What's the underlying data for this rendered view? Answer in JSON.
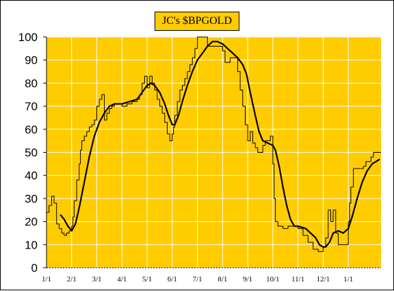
{
  "chart_data": {
    "type": "line",
    "title": "JC's $BPGOLD",
    "xlabel": "",
    "ylabel": "",
    "ylim": [
      0,
      100
    ],
    "yticks": [
      0,
      10,
      20,
      30,
      40,
      50,
      60,
      70,
      80,
      90,
      100
    ],
    "xlim": [
      0,
      13.3
    ],
    "xticks": [
      {
        "label": "1/1",
        "x": 0
      },
      {
        "label": "2/1",
        "x": 1
      },
      {
        "label": "3/1",
        "x": 2
      },
      {
        "label": "4/1",
        "x": 3
      },
      {
        "label": "5/1",
        "x": 4
      },
      {
        "label": "6/1",
        "x": 5
      },
      {
        "label": "7/1",
        "x": 6
      },
      {
        "label": "8/1",
        "x": 7
      },
      {
        "label": "9/1",
        "x": 8
      },
      {
        "label": "10/1",
        "x": 9
      },
      {
        "label": "11/1",
        "x": 10
      },
      {
        "label": "12/1",
        "x": 11
      },
      {
        "label": "1/1",
        "x": 12
      }
    ],
    "grid": true,
    "colors": {
      "plot_background": "#FFCC00",
      "grid": "#FFFFFF",
      "line": "#000000"
    },
    "series": [
      {
        "style": "thin",
        "points": [
          [
            0.0,
            24
          ],
          [
            0.1,
            24
          ],
          [
            0.1,
            27
          ],
          [
            0.2,
            27
          ],
          [
            0.2,
            31
          ],
          [
            0.3,
            31
          ],
          [
            0.3,
            28
          ],
          [
            0.4,
            28
          ],
          [
            0.4,
            19
          ],
          [
            0.5,
            19
          ],
          [
            0.5,
            17
          ],
          [
            0.6,
            17
          ],
          [
            0.6,
            15
          ],
          [
            0.7,
            15
          ],
          [
            0.7,
            14
          ],
          [
            0.8,
            14
          ],
          [
            0.8,
            15
          ],
          [
            0.9,
            15
          ],
          [
            0.9,
            16
          ],
          [
            1.0,
            16
          ],
          [
            1.0,
            18
          ],
          [
            1.05,
            18
          ],
          [
            1.05,
            22
          ],
          [
            1.1,
            22
          ],
          [
            1.1,
            29
          ],
          [
            1.2,
            29
          ],
          [
            1.2,
            38
          ],
          [
            1.3,
            38
          ],
          [
            1.3,
            45
          ],
          [
            1.35,
            45
          ],
          [
            1.35,
            51
          ],
          [
            1.4,
            51
          ],
          [
            1.4,
            55
          ],
          [
            1.5,
            55
          ],
          [
            1.5,
            57
          ],
          [
            1.6,
            57
          ],
          [
            1.6,
            59
          ],
          [
            1.7,
            59
          ],
          [
            1.7,
            61
          ],
          [
            1.8,
            61
          ],
          [
            1.8,
            62
          ],
          [
            1.9,
            62
          ],
          [
            1.9,
            64
          ],
          [
            2.0,
            64
          ],
          [
            2.0,
            70
          ],
          [
            2.1,
            70
          ],
          [
            2.1,
            73
          ],
          [
            2.2,
            73
          ],
          [
            2.2,
            75
          ],
          [
            2.3,
            75
          ],
          [
            2.3,
            64
          ],
          [
            2.4,
            64
          ],
          [
            2.4,
            67
          ],
          [
            2.5,
            67
          ],
          [
            2.5,
            69
          ],
          [
            2.6,
            69
          ],
          [
            2.6,
            70
          ],
          [
            2.7,
            70
          ],
          [
            2.7,
            71
          ],
          [
            3.0,
            71
          ],
          [
            3.0,
            70
          ],
          [
            3.2,
            70
          ],
          [
            3.2,
            71
          ],
          [
            3.4,
            71
          ],
          [
            3.4,
            72
          ],
          [
            3.6,
            72
          ],
          [
            3.6,
            73
          ],
          [
            3.7,
            73
          ],
          [
            3.7,
            75
          ],
          [
            3.8,
            75
          ],
          [
            3.8,
            80
          ],
          [
            3.9,
            80
          ],
          [
            3.9,
            83
          ],
          [
            4.0,
            83
          ],
          [
            4.0,
            78
          ],
          [
            4.1,
            78
          ],
          [
            4.1,
            83
          ],
          [
            4.2,
            83
          ],
          [
            4.2,
            80
          ],
          [
            4.3,
            80
          ],
          [
            4.3,
            77
          ],
          [
            4.4,
            77
          ],
          [
            4.4,
            73
          ],
          [
            4.5,
            73
          ],
          [
            4.5,
            70
          ],
          [
            4.6,
            70
          ],
          [
            4.6,
            67
          ],
          [
            4.7,
            67
          ],
          [
            4.7,
            63
          ],
          [
            4.8,
            63
          ],
          [
            4.8,
            58
          ],
          [
            4.9,
            58
          ],
          [
            4.9,
            55
          ],
          [
            5.0,
            55
          ],
          [
            5.0,
            58
          ],
          [
            5.05,
            58
          ],
          [
            5.05,
            61
          ],
          [
            5.1,
            61
          ],
          [
            5.1,
            66
          ],
          [
            5.2,
            66
          ],
          [
            5.2,
            72
          ],
          [
            5.3,
            72
          ],
          [
            5.3,
            77
          ],
          [
            5.4,
            77
          ],
          [
            5.4,
            79
          ],
          [
            5.5,
            79
          ],
          [
            5.5,
            82
          ],
          [
            5.6,
            82
          ],
          [
            5.6,
            85
          ],
          [
            5.7,
            85
          ],
          [
            5.7,
            88
          ],
          [
            5.8,
            88
          ],
          [
            5.8,
            91
          ],
          [
            5.9,
            91
          ],
          [
            5.9,
            95
          ],
          [
            6.0,
            95
          ],
          [
            6.0,
            100
          ],
          [
            6.4,
            100
          ],
          [
            6.4,
            96
          ],
          [
            7.0,
            96
          ],
          [
            7.0,
            94
          ],
          [
            7.1,
            94
          ],
          [
            7.1,
            89
          ],
          [
            7.3,
            89
          ],
          [
            7.3,
            91
          ],
          [
            7.6,
            91
          ],
          [
            7.6,
            85
          ],
          [
            7.7,
            85
          ],
          [
            7.7,
            77
          ],
          [
            7.8,
            77
          ],
          [
            7.8,
            70
          ],
          [
            7.9,
            70
          ],
          [
            7.9,
            62
          ],
          [
            8.0,
            62
          ],
          [
            8.0,
            55
          ],
          [
            8.1,
            55
          ],
          [
            8.1,
            59
          ],
          [
            8.2,
            59
          ],
          [
            8.2,
            54
          ],
          [
            8.3,
            54
          ],
          [
            8.3,
            52
          ],
          [
            8.4,
            52
          ],
          [
            8.4,
            50
          ],
          [
            8.6,
            50
          ],
          [
            8.6,
            53
          ],
          [
            8.7,
            53
          ],
          [
            8.7,
            55
          ],
          [
            8.9,
            55
          ],
          [
            8.9,
            57
          ],
          [
            9.0,
            57
          ],
          [
            9.0,
            45
          ],
          [
            9.05,
            45
          ],
          [
            9.05,
            30
          ],
          [
            9.1,
            30
          ],
          [
            9.1,
            20
          ],
          [
            9.2,
            20
          ],
          [
            9.2,
            18
          ],
          [
            9.4,
            18
          ],
          [
            9.4,
            17
          ],
          [
            9.6,
            17
          ],
          [
            9.6,
            18
          ],
          [
            10.0,
            18
          ],
          [
            10.0,
            17
          ],
          [
            10.2,
            17
          ],
          [
            10.2,
            14
          ],
          [
            10.4,
            14
          ],
          [
            10.4,
            11
          ],
          [
            10.6,
            11
          ],
          [
            10.6,
            8
          ],
          [
            10.8,
            8
          ],
          [
            10.8,
            7
          ],
          [
            11.0,
            7
          ],
          [
            11.0,
            9
          ],
          [
            11.1,
            9
          ],
          [
            11.1,
            13
          ],
          [
            11.2,
            13
          ],
          [
            11.2,
            25
          ],
          [
            11.3,
            25
          ],
          [
            11.3,
            20
          ],
          [
            11.4,
            20
          ],
          [
            11.4,
            25
          ],
          [
            11.5,
            25
          ],
          [
            11.5,
            15
          ],
          [
            11.6,
            15
          ],
          [
            11.6,
            10
          ],
          [
            12.0,
            10
          ],
          [
            12.0,
            20
          ],
          [
            12.05,
            20
          ],
          [
            12.05,
            28
          ],
          [
            12.1,
            28
          ],
          [
            12.1,
            35
          ],
          [
            12.2,
            35
          ],
          [
            12.2,
            43
          ],
          [
            12.6,
            43
          ],
          [
            12.6,
            44
          ],
          [
            12.7,
            44
          ],
          [
            12.7,
            46
          ],
          [
            12.9,
            46
          ],
          [
            12.9,
            48
          ],
          [
            13.0,
            48
          ],
          [
            13.0,
            50
          ],
          [
            13.3,
            50
          ]
        ]
      },
      {
        "style": "thick",
        "points": [
          [
            0.55,
            23
          ],
          [
            0.7,
            21
          ],
          [
            0.85,
            18
          ],
          [
            1.0,
            16
          ],
          [
            1.15,
            19
          ],
          [
            1.3,
            26
          ],
          [
            1.5,
            37
          ],
          [
            1.7,
            48
          ],
          [
            1.9,
            57
          ],
          [
            2.1,
            63
          ],
          [
            2.3,
            67
          ],
          [
            2.5,
            70
          ],
          [
            2.7,
            71
          ],
          [
            3.0,
            71
          ],
          [
            3.3,
            72
          ],
          [
            3.6,
            73
          ],
          [
            3.8,
            76
          ],
          [
            4.0,
            79
          ],
          [
            4.15,
            80
          ],
          [
            4.3,
            79
          ],
          [
            4.5,
            76
          ],
          [
            4.7,
            71
          ],
          [
            4.85,
            66
          ],
          [
            5.0,
            62
          ],
          [
            5.1,
            62
          ],
          [
            5.25,
            66
          ],
          [
            5.4,
            72
          ],
          [
            5.6,
            79
          ],
          [
            5.8,
            85
          ],
          [
            6.0,
            90
          ],
          [
            6.2,
            93
          ],
          [
            6.4,
            96
          ],
          [
            6.6,
            98
          ],
          [
            6.8,
            98
          ],
          [
            7.0,
            97
          ],
          [
            7.2,
            95
          ],
          [
            7.4,
            93
          ],
          [
            7.6,
            91
          ],
          [
            7.8,
            88
          ],
          [
            7.95,
            84
          ],
          [
            8.1,
            76
          ],
          [
            8.3,
            66
          ],
          [
            8.45,
            59
          ],
          [
            8.6,
            55
          ],
          [
            8.8,
            54
          ],
          [
            9.0,
            53
          ],
          [
            9.1,
            51
          ],
          [
            9.25,
            44
          ],
          [
            9.4,
            35
          ],
          [
            9.55,
            27
          ],
          [
            9.7,
            21
          ],
          [
            9.85,
            18
          ],
          [
            10.0,
            18
          ],
          [
            10.3,
            17
          ],
          [
            10.5,
            15
          ],
          [
            10.7,
            13
          ],
          [
            10.85,
            10
          ],
          [
            11.0,
            9
          ],
          [
            11.1,
            9
          ],
          [
            11.25,
            11
          ],
          [
            11.4,
            15
          ],
          [
            11.6,
            16
          ],
          [
            11.8,
            15
          ],
          [
            12.0,
            17
          ],
          [
            12.15,
            22
          ],
          [
            12.35,
            30
          ],
          [
            12.55,
            37
          ],
          [
            12.75,
            42
          ],
          [
            12.95,
            45
          ],
          [
            13.1,
            46
          ],
          [
            13.25,
            47
          ]
        ]
      }
    ]
  }
}
